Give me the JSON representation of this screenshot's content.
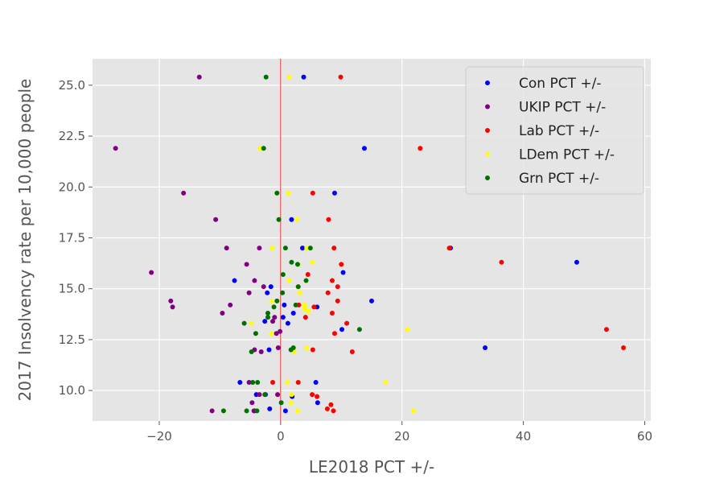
{
  "chart_data": {
    "type": "scatter",
    "title": "",
    "xlabel": "LE2018 PCT +/-",
    "ylabel": "2017 Insolvency rate per 10,000 people",
    "xlim": [
      -31,
      61
    ],
    "ylim": [
      8.5,
      26.3
    ],
    "xticks": [
      -20,
      0,
      20,
      40,
      60
    ],
    "xtick_labels": [
      "−20",
      "0",
      "20",
      "40",
      "60"
    ],
    "yticks": [
      10.0,
      12.5,
      15.0,
      17.5,
      20.0,
      22.5,
      25.0
    ],
    "ytick_labels": [
      "10.0",
      "12.5",
      "15.0",
      "17.5",
      "20.0",
      "22.5",
      "25.0"
    ],
    "grid": true,
    "legend_position": "top-right",
    "reference_line": {
      "x": 0,
      "color": "#e00000"
    },
    "series": [
      {
        "name": "Con PCT +/-",
        "color": "#0000ff",
        "points": [
          [
            3.8,
            25.4
          ],
          [
            13.8,
            21.9
          ],
          [
            8.9,
            19.7
          ],
          [
            1.8,
            18.4
          ],
          [
            3.6,
            17.0
          ],
          [
            28.0,
            17.0
          ],
          [
            48.8,
            16.3
          ],
          [
            10.3,
            15.8
          ],
          [
            -7.6,
            15.4
          ],
          [
            -1.6,
            15.1
          ],
          [
            -2.2,
            14.8
          ],
          [
            15.0,
            14.4
          ],
          [
            0.6,
            14.2
          ],
          [
            6.0,
            14.1
          ],
          [
            -2.6,
            13.4
          ],
          [
            2.1,
            13.8
          ],
          [
            0.4,
            13.6
          ],
          [
            1.2,
            13.3
          ],
          [
            10.1,
            13.0
          ],
          [
            33.7,
            12.1
          ],
          [
            -1.9,
            12.0
          ],
          [
            -6.7,
            10.4
          ],
          [
            5.8,
            10.4
          ],
          [
            -2.5,
            9.8
          ],
          [
            -4.0,
            9.8
          ],
          [
            1.9,
            9.7
          ],
          [
            6.1,
            9.4
          ],
          [
            -1.8,
            9.1
          ],
          [
            0.8,
            9.0
          ],
          [
            -4.3,
            9.0
          ]
        ]
      },
      {
        "name": "UKIP PCT +/-",
        "color": "#800080",
        "points": [
          [
            -13.4,
            25.4
          ],
          [
            -27.2,
            21.9
          ],
          [
            -16.0,
            19.7
          ],
          [
            -10.7,
            18.4
          ],
          [
            -8.9,
            17.0
          ],
          [
            -3.5,
            17.0
          ],
          [
            -5.6,
            16.2
          ],
          [
            -21.3,
            15.8
          ],
          [
            -4.3,
            15.4
          ],
          [
            -2.8,
            15.1
          ],
          [
            -5.2,
            14.8
          ],
          [
            -18.1,
            14.4
          ],
          [
            -17.8,
            14.1
          ],
          [
            -8.3,
            14.2
          ],
          [
            -9.6,
            13.8
          ],
          [
            -1.3,
            13.4
          ],
          [
            -1.0,
            13.6
          ],
          [
            -0.7,
            12.8
          ],
          [
            -0.1,
            12.9
          ],
          [
            -0.4,
            12.1
          ],
          [
            -4.3,
            12.0
          ],
          [
            -3.2,
            11.9
          ],
          [
            -5.2,
            10.4
          ],
          [
            -0.5,
            9.8
          ],
          [
            -3.5,
            9.8
          ],
          [
            -4.7,
            9.4
          ],
          [
            -11.3,
            9.0
          ],
          [
            -4.4,
            9.0
          ]
        ]
      },
      {
        "name": "Lab PCT +/-",
        "color": "#ff0000",
        "points": [
          [
            9.9,
            25.4
          ],
          [
            23.0,
            21.9
          ],
          [
            5.3,
            19.7
          ],
          [
            7.9,
            18.4
          ],
          [
            8.8,
            17.0
          ],
          [
            27.8,
            17.0
          ],
          [
            36.4,
            16.3
          ],
          [
            10.0,
            16.2
          ],
          [
            4.5,
            15.7
          ],
          [
            8.5,
            15.4
          ],
          [
            9.4,
            15.1
          ],
          [
            7.8,
            14.8
          ],
          [
            9.4,
            14.4
          ],
          [
            5.5,
            14.1
          ],
          [
            3.0,
            14.2
          ],
          [
            4.1,
            13.6
          ],
          [
            8.5,
            13.8
          ],
          [
            10.9,
            13.3
          ],
          [
            8.9,
            12.8
          ],
          [
            53.7,
            13.0
          ],
          [
            56.5,
            12.1
          ],
          [
            5.3,
            12.0
          ],
          [
            11.8,
            11.9
          ],
          [
            -1.3,
            10.4
          ],
          [
            2.9,
            10.4
          ],
          [
            5.2,
            9.8
          ],
          [
            6.0,
            9.7
          ],
          [
            8.3,
            9.3
          ],
          [
            7.7,
            9.1
          ],
          [
            8.7,
            9.0
          ]
        ]
      },
      {
        "name": "LDem PCT +/-",
        "color": "#ffff00",
        "points": [
          [
            1.4,
            25.4
          ],
          [
            -3.4,
            21.9
          ],
          [
            1.3,
            19.7
          ],
          [
            2.7,
            18.4
          ],
          [
            -1.4,
            17.0
          ],
          [
            4.3,
            17.0
          ],
          [
            5.2,
            16.3
          ],
          [
            2.9,
            16.2
          ],
          [
            1.4,
            15.4
          ],
          [
            2.8,
            15.1
          ],
          [
            3.2,
            14.8
          ],
          [
            -1.5,
            14.4
          ],
          [
            3.9,
            14.2
          ],
          [
            4.6,
            13.9
          ],
          [
            -4.9,
            13.3
          ],
          [
            4.0,
            14.0
          ],
          [
            -1.5,
            12.8
          ],
          [
            20.9,
            13.0
          ],
          [
            4.3,
            12.1
          ],
          [
            2.2,
            11.9
          ],
          [
            17.3,
            10.4
          ],
          [
            1.1,
            10.4
          ],
          [
            1.8,
            9.8
          ],
          [
            1.7,
            9.4
          ],
          [
            2.8,
            9.0
          ],
          [
            21.9,
            9.0
          ]
        ]
      },
      {
        "name": "Grn PCT +/-",
        "color": "#007000",
        "points": [
          [
            -2.4,
            25.4
          ],
          [
            -2.8,
            21.9
          ],
          [
            -0.6,
            19.7
          ],
          [
            -0.3,
            18.4
          ],
          [
            0.8,
            17.0
          ],
          [
            4.9,
            17.0
          ],
          [
            1.8,
            16.3
          ],
          [
            2.8,
            16.2
          ],
          [
            0.4,
            15.7
          ],
          [
            4.2,
            15.4
          ],
          [
            2.9,
            15.1
          ],
          [
            0.3,
            14.8
          ],
          [
            -0.6,
            14.4
          ],
          [
            -1.1,
            14.1
          ],
          [
            -2.1,
            13.8
          ],
          [
            -2.1,
            13.6
          ],
          [
            2.5,
            14.2
          ],
          [
            -6.0,
            13.3
          ],
          [
            13.0,
            13.0
          ],
          [
            -4.1,
            12.8
          ],
          [
            2.1,
            12.1
          ],
          [
            1.7,
            12.0
          ],
          [
            -4.8,
            11.9
          ],
          [
            -3.8,
            10.4
          ],
          [
            -4.6,
            10.4
          ],
          [
            -2.6,
            9.8
          ],
          [
            0.1,
            9.4
          ],
          [
            -9.4,
            9.0
          ],
          [
            -5.6,
            9.0
          ],
          [
            -3.9,
            9.0
          ]
        ]
      }
    ]
  }
}
